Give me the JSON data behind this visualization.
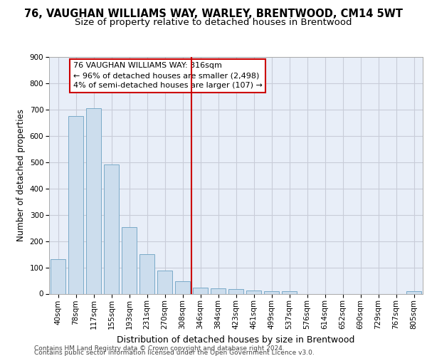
{
  "title": "76, VAUGHAN WILLIAMS WAY, WARLEY, BRENTWOOD, CM14 5WT",
  "subtitle": "Size of property relative to detached houses in Brentwood",
  "xlabel": "Distribution of detached houses by size in Brentwood",
  "ylabel": "Number of detached properties",
  "bar_labels": [
    "40sqm",
    "78sqm",
    "117sqm",
    "155sqm",
    "193sqm",
    "231sqm",
    "270sqm",
    "308sqm",
    "346sqm",
    "384sqm",
    "423sqm",
    "461sqm",
    "499sqm",
    "537sqm",
    "576sqm",
    "614sqm",
    "652sqm",
    "690sqm",
    "729sqm",
    "767sqm",
    "805sqm"
  ],
  "bar_values": [
    130,
    675,
    705,
    490,
    253,
    150,
    88,
    48,
    22,
    20,
    18,
    13,
    10,
    10,
    0,
    0,
    0,
    0,
    0,
    0,
    10
  ],
  "bar_color": "#ccdded",
  "bar_edgecolor": "#7aaac8",
  "vline_x": 7.5,
  "vline_color": "#cc0000",
  "annotation_text": "76 VAUGHAN WILLIAMS WAY: 316sqm\n← 96% of detached houses are smaller (2,498)\n4% of semi-detached houses are larger (107) →",
  "annotation_box_facecolor": "#ffffff",
  "annotation_box_edgecolor": "#cc0000",
  "ylim": [
    0,
    900
  ],
  "yticks": [
    0,
    100,
    200,
    300,
    400,
    500,
    600,
    700,
    800,
    900
  ],
  "axes_facecolor": "#e8eef8",
  "grid_color": "#c8ccd8",
  "footer_line1": "Contains HM Land Registry data © Crown copyright and database right 2024.",
  "footer_line2": "Contains public sector information licensed under the Open Government Licence v3.0.",
  "title_fontsize": 10.5,
  "subtitle_fontsize": 9.5,
  "xlabel_fontsize": 9,
  "ylabel_fontsize": 8.5,
  "tick_fontsize": 7.5,
  "annotation_fontsize": 8,
  "footer_fontsize": 6.5
}
